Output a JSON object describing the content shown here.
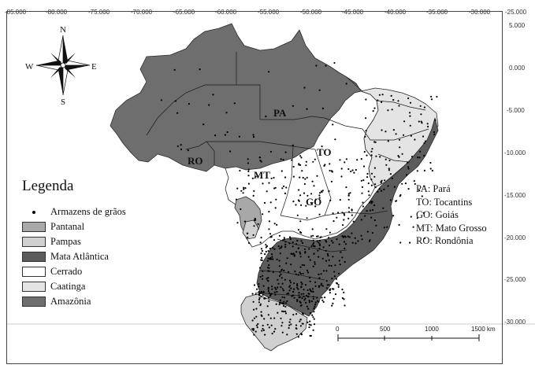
{
  "map": {
    "lon_labels": [
      "-85.000",
      "-80.000",
      "-75.000",
      "-70.000",
      "-65.000",
      "-60.000",
      "-55.000",
      "-50.000",
      "-45.000",
      "-40.000",
      "-35.000",
      "-30.000",
      "-25.000"
    ],
    "lat_labels": [
      "5.000",
      "0.000",
      "-5.000",
      "-10.000",
      "-15.000",
      "-20.000",
      "-25.000",
      "-30.000"
    ],
    "colors": {
      "amazonia": "#6e6e6e",
      "cerrado": "#ffffff",
      "caatinga": "#e4e4e4",
      "mata_atlantica": "#5c5c5c",
      "pampas": "#d0d0d0",
      "pantanal": "#a8a8a8",
      "points": "#000000",
      "borders": "#2a2a2a"
    }
  },
  "compass": {
    "n": "N",
    "s": "S",
    "e": "E",
    "w": "W"
  },
  "legend": {
    "title": "Legenda",
    "points_label": "Armazens de grãos",
    "items": [
      {
        "label": "Pantanal",
        "color": "#a8a8a8"
      },
      {
        "label": "Pampas",
        "color": "#d0d0d0"
      },
      {
        "label": "Mata Atlântica",
        "color": "#5c5c5c"
      },
      {
        "label": "Cerrado",
        "color": "#ffffff"
      },
      {
        "label": "Caatinga",
        "color": "#e4e4e4"
      },
      {
        "label": "Amazônia",
        "color": "#6e6e6e"
      }
    ]
  },
  "states": {
    "pa": "PA",
    "to": "TO",
    "go": "GO",
    "mt": "MT",
    "ro": "RO"
  },
  "abbreviations": [
    "PA: Pará",
    "TO: Tocantins",
    "GO: Goiás",
    "MT: Mato Grosso",
    "RO: Rondônia"
  ],
  "scale": {
    "labels": [
      "0",
      "500",
      "1000",
      "1500 km"
    ]
  }
}
